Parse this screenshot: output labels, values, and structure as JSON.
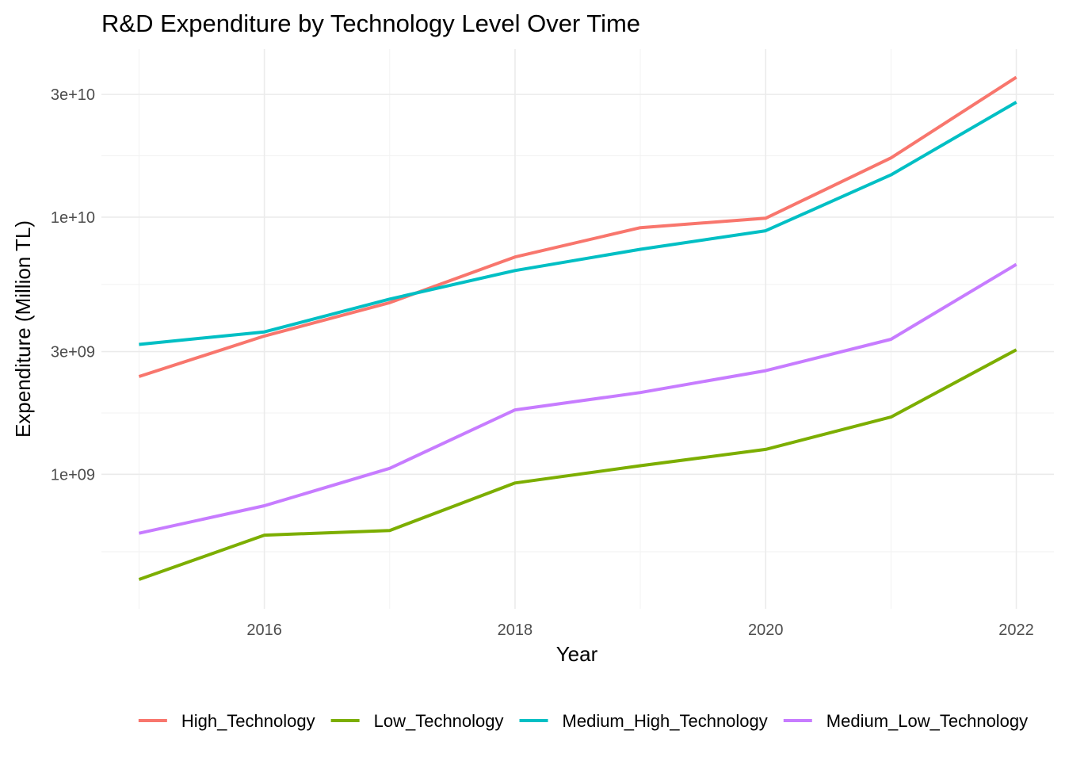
{
  "chart_data": {
    "type": "line",
    "title": "R&D Expenditure by Technology Level Over Time",
    "xlabel": "Year",
    "ylabel": "Expenditure (Million TL)",
    "y_scale": "log10",
    "x": [
      2015,
      2016,
      2017,
      2018,
      2019,
      2020,
      2021,
      2022
    ],
    "x_ticks": [
      2016,
      2018,
      2020,
      2022
    ],
    "x_tick_labels": [
      "2016",
      "2018",
      "2020",
      "2022"
    ],
    "y_ticks": [
      1000000000,
      3000000000,
      10000000000,
      30000000000
    ],
    "y_tick_labels": [
      "1e+09",
      "3e+09",
      "1e+10",
      "3e+10"
    ],
    "y_minor_ticks": [
      500000000,
      1732000000,
      5477000000,
      17320000000
    ],
    "xlim": [
      2014.7,
      2022.3
    ],
    "ylim": [
      300000000,
      45000000000
    ],
    "grid": true,
    "legend_position": "bottom",
    "series": [
      {
        "name": "High_Technology",
        "color": "#F8766D",
        "values": [
          2400000000,
          3450000000,
          4650000000,
          7000000000,
          9100000000,
          9900000000,
          17000000000,
          35000000000
        ]
      },
      {
        "name": "Low_Technology",
        "color": "#7CAE00",
        "values": [
          390000000,
          580000000,
          605000000,
          925000000,
          1080000000,
          1250000000,
          1670000000,
          3050000000
        ]
      },
      {
        "name": "Medium_High_Technology",
        "color": "#00BFC4",
        "values": [
          3200000000,
          3580000000,
          4800000000,
          6200000000,
          7500000000,
          8850000000,
          14600000000,
          28000000000
        ]
      },
      {
        "name": "Medium_Low_Technology",
        "color": "#C77CFF",
        "values": [
          590000000,
          755000000,
          1055000000,
          1780000000,
          2080000000,
          2530000000,
          3350000000,
          6550000000
        ]
      }
    ]
  }
}
